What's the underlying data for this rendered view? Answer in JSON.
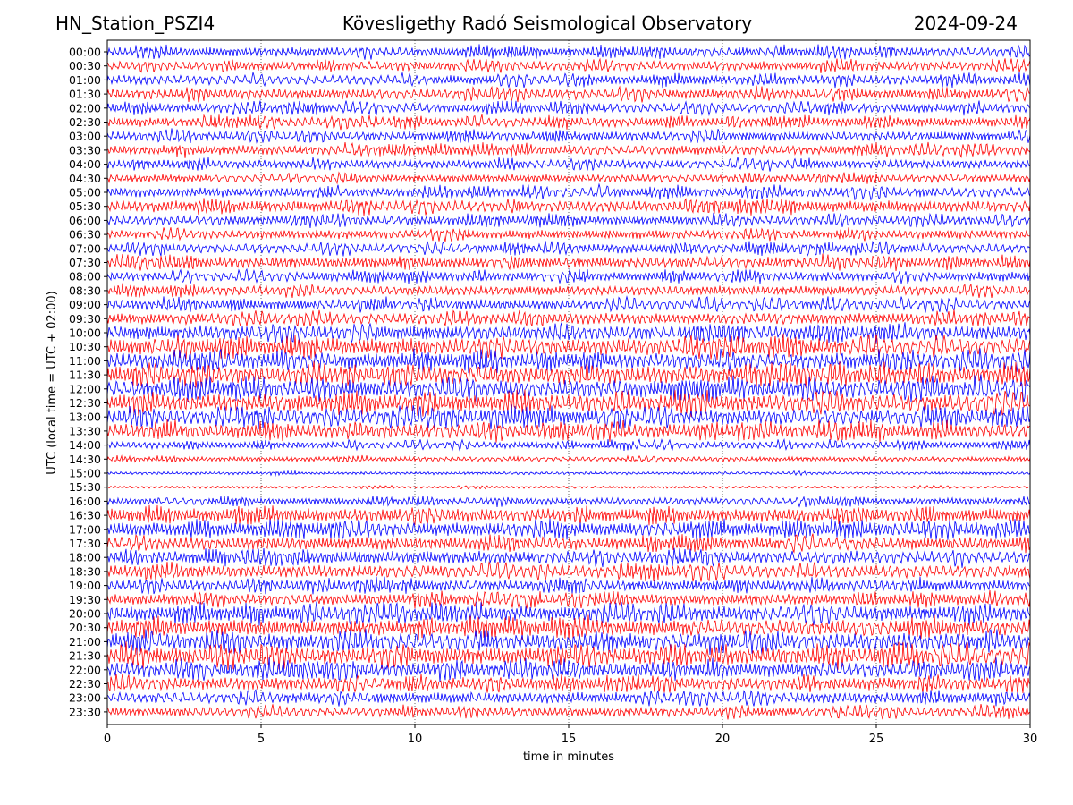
{
  "chart_data": {
    "type": "line",
    "station": "HN_Station_PSZI4",
    "title": "Kövesligethy Radó Seismological Observatory",
    "date": "2024-09-24",
    "xlabel": "time in minutes",
    "ylabel": "UTC (local time = UTC + 02:00)",
    "xlim": [
      0,
      30
    ],
    "xticks": [
      0,
      5,
      10,
      15,
      20,
      25,
      30
    ],
    "grid_x": true,
    "rows": [
      "00:00",
      "00:30",
      "01:00",
      "01:30",
      "02:00",
      "02:30",
      "03:00",
      "03:30",
      "04:00",
      "04:30",
      "05:00",
      "05:30",
      "06:00",
      "06:30",
      "07:00",
      "07:30",
      "08:00",
      "08:30",
      "09:00",
      "09:30",
      "10:00",
      "10:30",
      "11:00",
      "11:30",
      "12:00",
      "12:30",
      "13:00",
      "13:30",
      "14:00",
      "14:30",
      "15:00",
      "15:30",
      "16:00",
      "16:30",
      "17:00",
      "17:30",
      "18:00",
      "18:30",
      "19:00",
      "19:30",
      "20:00",
      "20:30",
      "21:00",
      "21:30",
      "22:00",
      "22:30",
      "23:00",
      "23:30"
    ],
    "row_colors": [
      "#0000ff",
      "#ff0000"
    ],
    "row_activity": [
      0.5,
      0.5,
      0.5,
      0.55,
      0.5,
      0.5,
      0.5,
      0.5,
      0.45,
      0.4,
      0.5,
      0.6,
      0.5,
      0.45,
      0.5,
      0.6,
      0.5,
      0.5,
      0.55,
      0.6,
      0.8,
      0.95,
      0.9,
      1.0,
      1.0,
      1.0,
      0.9,
      0.8,
      0.35,
      0.2,
      0.08,
      0.05,
      0.35,
      0.75,
      0.8,
      0.7,
      0.7,
      0.7,
      0.6,
      0.6,
      0.85,
      0.9,
      0.95,
      1.0,
      0.85,
      0.7,
      0.6,
      0.5
    ]
  }
}
